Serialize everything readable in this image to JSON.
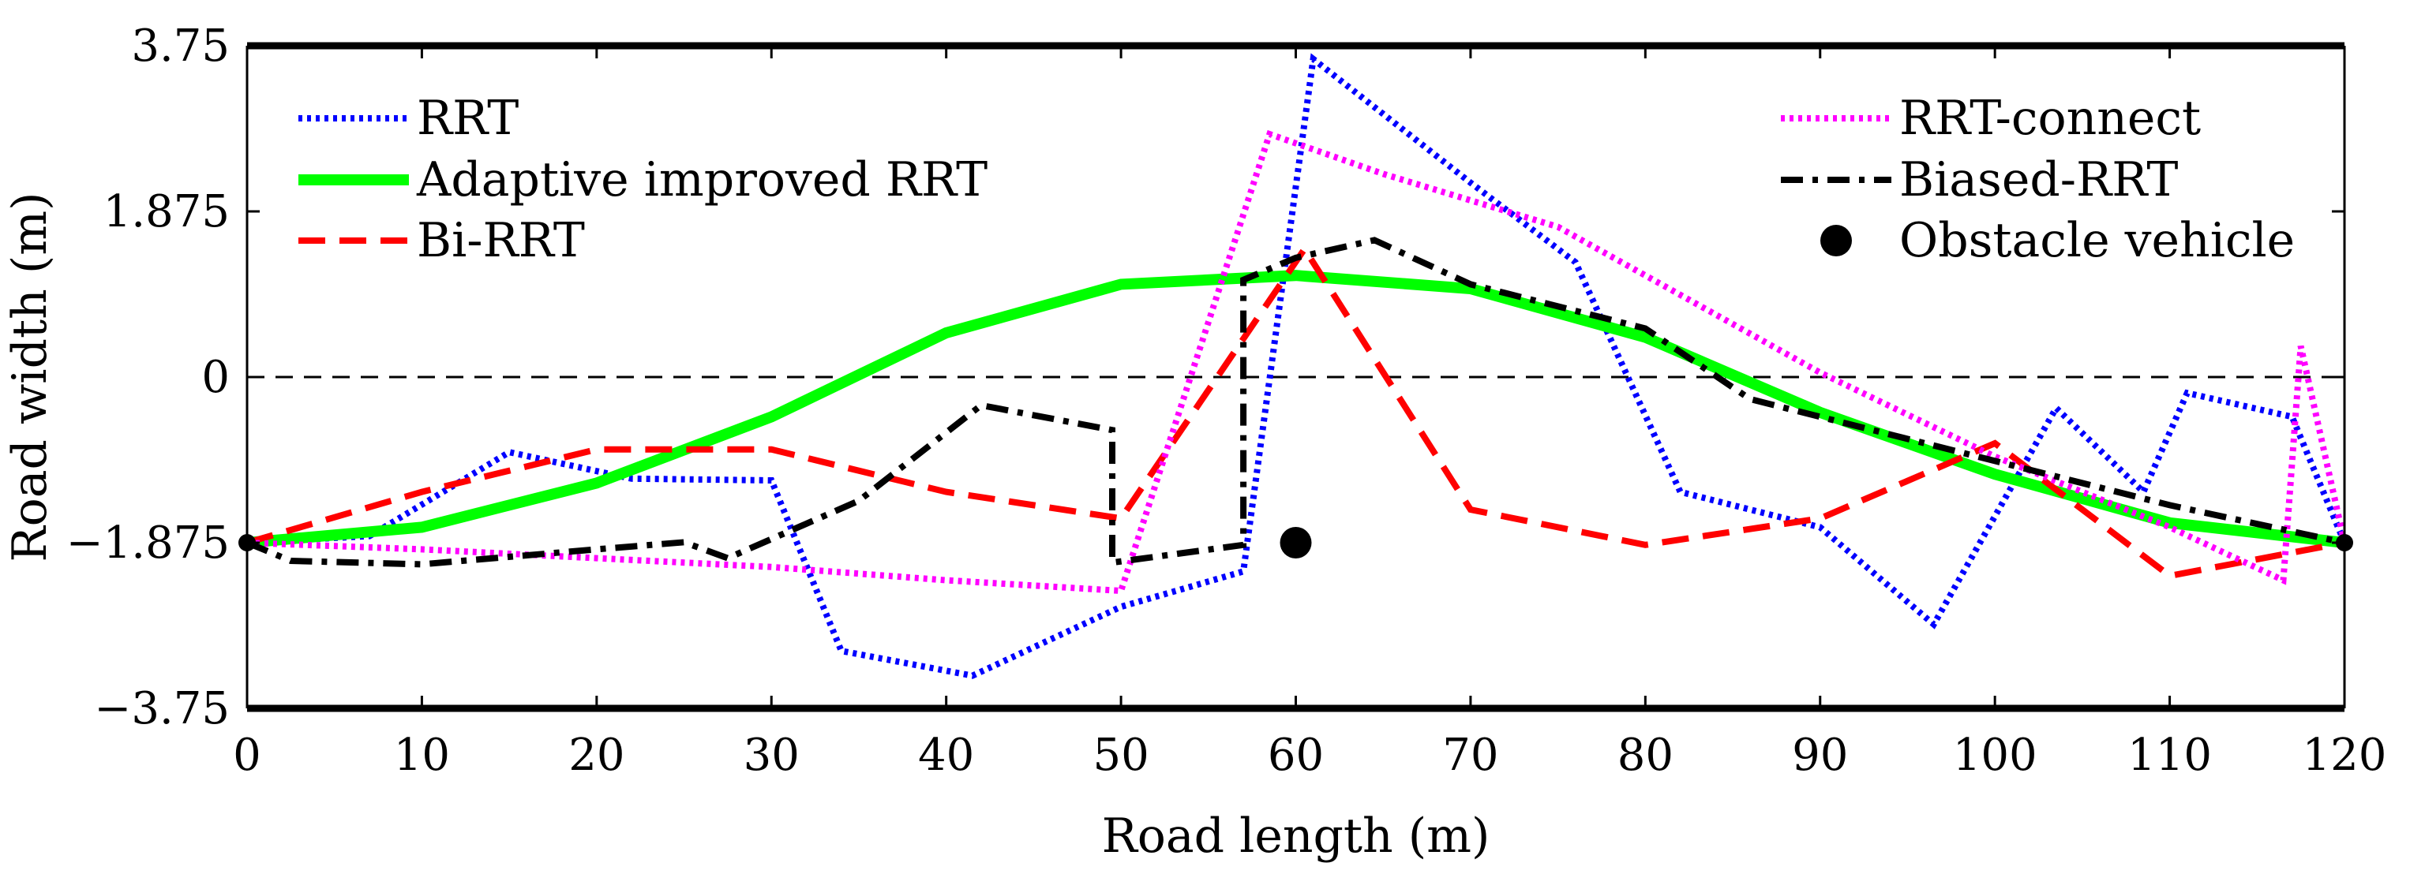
{
  "chart_data": {
    "type": "line",
    "xlabel": "Road length (m)",
    "ylabel": "Road width (m)",
    "xlim": [
      0,
      120
    ],
    "ylim": [
      -3.75,
      3.75
    ],
    "xticks": [
      0,
      10,
      20,
      30,
      40,
      50,
      60,
      70,
      80,
      90,
      100,
      110,
      120
    ],
    "yticks": [
      -3.75,
      -1.875,
      0,
      1.875,
      3.75
    ],
    "ytick_labels": [
      "−3.75",
      "−1.875",
      "0",
      "1.875",
      "3.75"
    ],
    "centerline": {
      "y": 0,
      "style": "dashed",
      "color": "#000000"
    },
    "road_edges": [
      -3.75,
      3.75
    ],
    "series": [
      {
        "name": "RRT",
        "color": "#0000ff",
        "style": "dotted",
        "x": [
          0,
          7,
          15,
          22,
          30,
          34,
          41.5,
          50,
          57,
          61,
          70,
          76,
          82,
          90,
          96.5,
          103.5,
          108.5,
          111,
          117,
          120
        ],
        "y": [
          -1.875,
          -1.8,
          -0.85,
          -1.15,
          -1.17,
          -3.1,
          -3.38,
          -2.6,
          -2.2,
          3.6,
          2.2,
          1.3,
          -1.3,
          -1.7,
          -2.8,
          -0.35,
          -1.3,
          -0.18,
          -0.45,
          -1.875
        ]
      },
      {
        "name": "Adaptive improved RRT",
        "color": "#00ff00",
        "style": "solid",
        "x": [
          0,
          10,
          20,
          30,
          40,
          50,
          60,
          70,
          80,
          90,
          100,
          110,
          120
        ],
        "y": [
          -1.875,
          -1.7,
          -1.2,
          -0.45,
          0.5,
          1.05,
          1.15,
          1.0,
          0.45,
          -0.4,
          -1.1,
          -1.65,
          -1.875
        ]
      },
      {
        "name": "Bi-RRT",
        "color": "#ff0000",
        "style": "dashed",
        "x": [
          0,
          10,
          20,
          30,
          40,
          50,
          60.5,
          70,
          80,
          90,
          100,
          110,
          120
        ],
        "y": [
          -1.875,
          -1.3,
          -0.82,
          -0.82,
          -1.3,
          -1.6,
          1.45,
          -1.5,
          -1.9,
          -1.6,
          -0.75,
          -2.25,
          -1.875
        ]
      },
      {
        "name": "RRT-connect",
        "color": "#ff00ff",
        "style": "dotted",
        "x": [
          0,
          10,
          20,
          30,
          40,
          50,
          58.5,
          65,
          75,
          90,
          100,
          110,
          116.5,
          117.5,
          120
        ],
        "y": [
          -1.875,
          -1.95,
          -2.05,
          -2.15,
          -2.3,
          -2.42,
          2.75,
          2.3,
          1.7,
          0.05,
          -0.9,
          -1.7,
          -2.3,
          0.35,
          -1.875
        ]
      },
      {
        "name": "Biased-RRT",
        "color": "#000000",
        "style": "dashdot",
        "x": [
          0,
          2.5,
          10,
          20,
          25,
          27.5,
          35,
          42,
          49.5,
          49.5,
          57,
          57,
          60,
          64.5,
          70,
          80,
          86,
          100,
          110,
          120
        ],
        "y": [
          -1.875,
          -2.08,
          -2.12,
          -1.95,
          -1.87,
          -2.05,
          -1.4,
          -0.32,
          -0.6,
          -2.1,
          -1.9,
          1.1,
          1.35,
          1.55,
          1.05,
          0.55,
          -0.25,
          -0.95,
          -1.45,
          -1.875
        ]
      }
    ],
    "obstacle": {
      "name": "Obstacle vehicle",
      "x": 60,
      "y": -1.875,
      "color": "#000000"
    },
    "endpoints": [
      {
        "x": 0,
        "y": -1.875
      },
      {
        "x": 120,
        "y": -1.875
      }
    ],
    "legend": {
      "left": [
        "RRT",
        "Adaptive improved RRT",
        "Bi-RRT"
      ],
      "right": [
        "RRT-connect",
        "Biased-RRT",
        "Obstacle vehicle"
      ]
    }
  }
}
